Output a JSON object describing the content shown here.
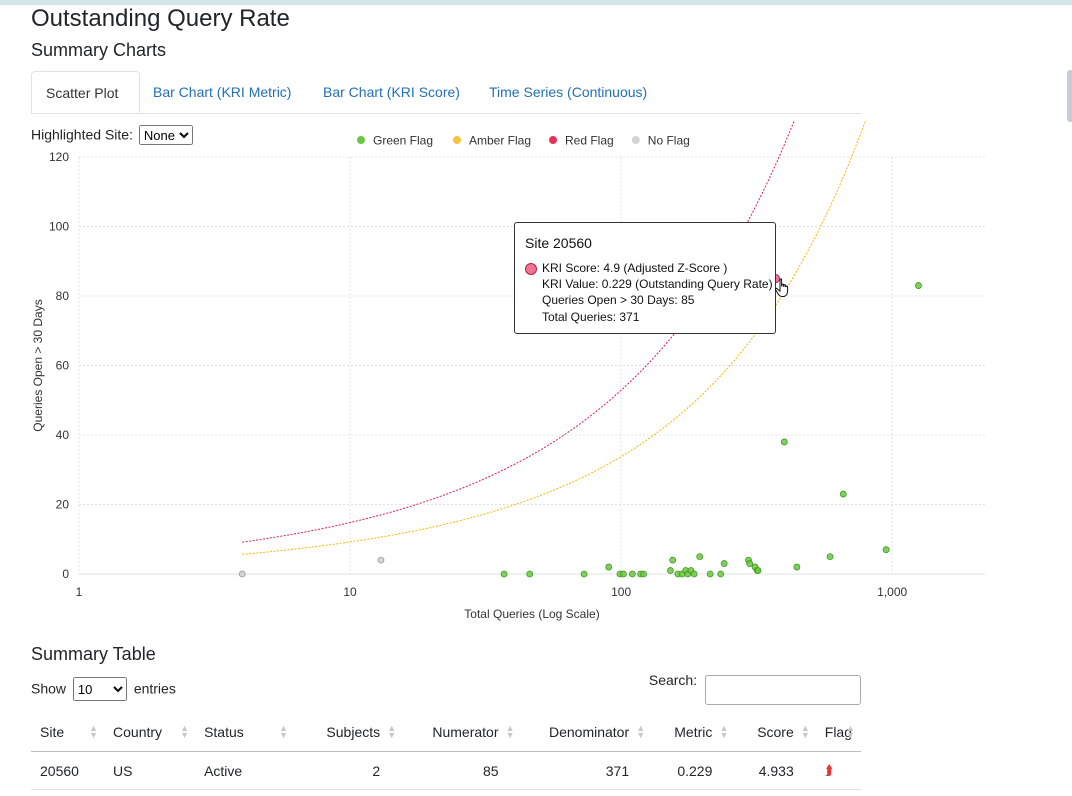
{
  "page": {
    "title": "Outstanding Query Rate",
    "summary_charts_heading": "Summary Charts",
    "summary_table_heading": "Summary Table"
  },
  "tabs": [
    {
      "label": "Scatter Plot",
      "active": true
    },
    {
      "label": "Bar Chart (KRI Metric)",
      "active": false
    },
    {
      "label": "Bar Chart (KRI Score)",
      "active": false
    },
    {
      "label": "Time Series (Continuous)",
      "active": false
    }
  ],
  "controls": {
    "highlighted_site_label": "Highlighted Site:",
    "highlighted_site_value": "None"
  },
  "legend": [
    {
      "label": "Green Flag",
      "color": "#6cc644"
    },
    {
      "label": "Amber Flag",
      "color": "#f5c242"
    },
    {
      "label": "Red Flag",
      "color": "#e8325a"
    },
    {
      "label": "No Flag",
      "color": "#d3d3d3"
    }
  ],
  "chart_data": {
    "type": "scatter",
    "xlabel": "Total Queries (Log Scale)",
    "ylabel": "Queries Open > 30 Days",
    "x_scale": "log",
    "xlim": [
      1,
      2200
    ],
    "ylim": [
      0,
      120
    ],
    "x_ticks": [
      1,
      10,
      100,
      1000
    ],
    "x_tick_labels": [
      "1",
      "10",
      "100",
      "1,000"
    ],
    "y_ticks": [
      0,
      20,
      40,
      60,
      80,
      100,
      120
    ],
    "y_tick_labels": [
      "0",
      "20",
      "40",
      "60",
      "80",
      "100",
      "120"
    ],
    "grid": true,
    "legend_position": "top-center",
    "flag_colors": {
      "green": "#6cc644",
      "amber": "#f5c242",
      "red": "#e8325a",
      "none": "#cccccc"
    },
    "bounds": [
      {
        "name": "red",
        "color": "#d81b60",
        "rate": 0.0888,
        "offset": 4.4
      },
      {
        "name": "amber",
        "color": "#f5b800",
        "rate": 0.068,
        "offset": 2.7
      }
    ],
    "points": [
      {
        "x": 4,
        "y": 0,
        "flag": "none"
      },
      {
        "x": 13,
        "y": 4,
        "flag": "none"
      },
      {
        "x": 37,
        "y": 0,
        "flag": "green"
      },
      {
        "x": 46,
        "y": 0,
        "flag": "green"
      },
      {
        "x": 73,
        "y": 0,
        "flag": "green"
      },
      {
        "x": 90,
        "y": 2,
        "flag": "green"
      },
      {
        "x": 99,
        "y": 0,
        "flag": "green"
      },
      {
        "x": 102,
        "y": 0,
        "flag": "green"
      },
      {
        "x": 110,
        "y": 0,
        "flag": "green"
      },
      {
        "x": 118,
        "y": 0,
        "flag": "green"
      },
      {
        "x": 121,
        "y": 0,
        "flag": "green"
      },
      {
        "x": 152,
        "y": 1,
        "flag": "green"
      },
      {
        "x": 155,
        "y": 4,
        "flag": "green"
      },
      {
        "x": 162,
        "y": 0,
        "flag": "green"
      },
      {
        "x": 168,
        "y": 0,
        "flag": "green"
      },
      {
        "x": 173,
        "y": 1,
        "flag": "green"
      },
      {
        "x": 176,
        "y": 0,
        "flag": "green"
      },
      {
        "x": 181,
        "y": 1,
        "flag": "green"
      },
      {
        "x": 186,
        "y": 0,
        "flag": "green"
      },
      {
        "x": 195,
        "y": 5,
        "flag": "green"
      },
      {
        "x": 213,
        "y": 0,
        "flag": "green"
      },
      {
        "x": 233,
        "y": 0,
        "flag": "green"
      },
      {
        "x": 240,
        "y": 3,
        "flag": "green"
      },
      {
        "x": 295,
        "y": 4,
        "flag": "green"
      },
      {
        "x": 298,
        "y": 3,
        "flag": "green"
      },
      {
        "x": 312,
        "y": 2,
        "flag": "green"
      },
      {
        "x": 318,
        "y": 1,
        "flag": "green"
      },
      {
        "x": 320,
        "y": 1,
        "flag": "green"
      },
      {
        "x": 371,
        "y": 85,
        "flag": "red"
      },
      {
        "x": 400,
        "y": 38,
        "flag": "green"
      },
      {
        "x": 445,
        "y": 2,
        "flag": "green"
      },
      {
        "x": 590,
        "y": 5,
        "flag": "green"
      },
      {
        "x": 660,
        "y": 23,
        "flag": "green"
      },
      {
        "x": 950,
        "y": 7,
        "flag": "green"
      },
      {
        "x": 1250,
        "y": 83,
        "flag": "green"
      }
    ]
  },
  "tooltip": {
    "title": "Site 20560",
    "line1": "KRI Score: 4.9 (Adjusted Z-Score )",
    "line2": "KRI Value: 0.229 (Outstanding Query Rate)",
    "line3": "Queries Open > 30 Days: 85",
    "line4": "Total Queries: 371"
  },
  "table_controls": {
    "show_label": "Show",
    "entries_value": "10",
    "entries_label": "entries",
    "search_label": "Search:"
  },
  "table": {
    "columns": [
      "Site",
      "Country",
      "Status",
      "Subjects",
      "Numerator",
      "Denominator",
      "Metric",
      "Score",
      "Flag"
    ],
    "rows": [
      {
        "site": "20560",
        "country": "US",
        "status": "Active",
        "subjects": "2",
        "numerator": "85",
        "denominator": "371",
        "metric": "0.229",
        "score": "4.933",
        "flag_icon": "double-chevron-up-icon"
      }
    ]
  }
}
